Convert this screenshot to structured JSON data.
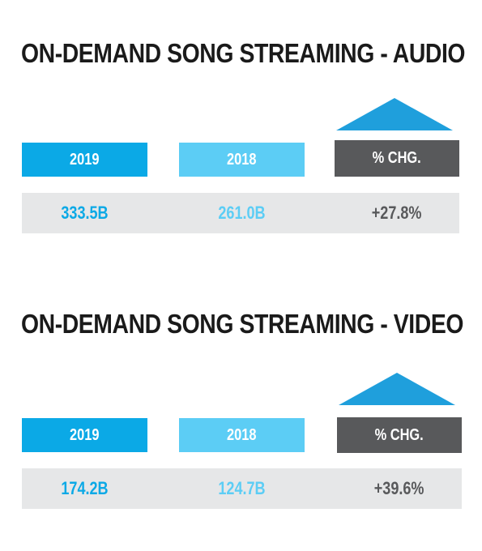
{
  "chart_data": [
    {
      "type": "table",
      "title": "ON-DEMAND SONG STREAMING - AUDIO",
      "columns": [
        "2019",
        "2018",
        "% CHG."
      ],
      "values": [
        "333.5B",
        "261.0B",
        "+27.8%"
      ],
      "direction": "up"
    },
    {
      "type": "table",
      "title": "ON-DEMAND SONG STREAMING - VIDEO",
      "columns": [
        "2019",
        "2018",
        "% CHG."
      ],
      "values": [
        "174.2B",
        "124.7B",
        "+39.6%"
      ],
      "direction": "up"
    }
  ],
  "colors": {
    "col_2019": "#0ba9e6",
    "col_2018": "#5ccdf5",
    "col_chg": "#58595b",
    "arrow": "#1f9fdc",
    "row_bg": "#e6e7e8"
  },
  "icons": [
    "up-arrow-icon",
    "up-arrow-icon"
  ]
}
